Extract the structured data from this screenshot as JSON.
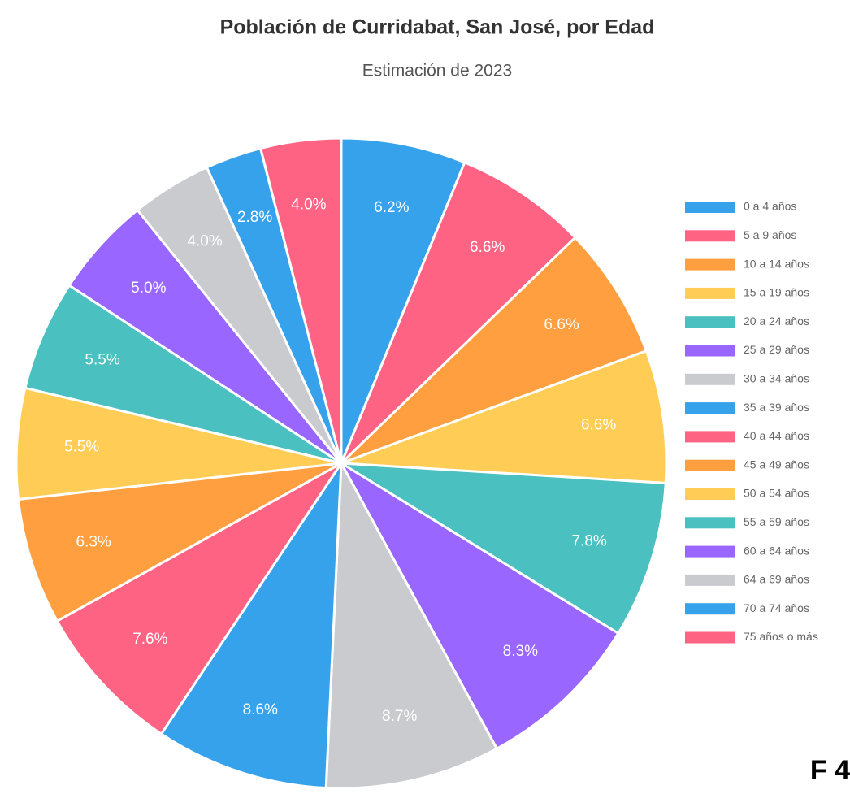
{
  "chart_data": {
    "type": "pie",
    "title": "Población de Curridabat, San José, por Edad",
    "subtitle": "Estimación de 2023",
    "categories": [
      "0 a 4 años",
      "5 a 9 años",
      "10 a 14 años",
      "15 a 19 años",
      "20 a 24 años",
      "25 a 29 años",
      "30 a 34 años",
      "35 a 39 años",
      "40 a 44 años",
      "45 a 49 años",
      "50 a 54 años",
      "55 a 59 años",
      "60 a 64 años",
      "64 a 69 años",
      "70 a 74 años",
      "75 años o más"
    ],
    "values": [
      6.2,
      6.6,
      6.6,
      6.6,
      7.8,
      8.3,
      8.7,
      8.6,
      7.6,
      6.3,
      5.5,
      5.5,
      5.0,
      4.0,
      2.8,
      4.0
    ],
    "value_labels": [
      "6.2%",
      "6.6%",
      "6.6%",
      "6.6%",
      "7.8%",
      "8.3%",
      "8.7%",
      "8.6%",
      "7.6%",
      "6.3%",
      "5.5%",
      "5.5%",
      "5.0%",
      "4.0%",
      "2.8%",
      "4.0%"
    ],
    "colors": [
      "#36a2eb",
      "#ff6384",
      "#ff9f40",
      "#ffcd56",
      "#4bc0c0",
      "#9966ff",
      "#c9cbcf",
      "#36a2eb",
      "#ff6384",
      "#ff9f40",
      "#ffcd56",
      "#4bc0c0",
      "#9966ff",
      "#c9cbcf",
      "#36a2eb",
      "#ff6384"
    ],
    "legend": "right"
  },
  "footer_text": "F 4"
}
